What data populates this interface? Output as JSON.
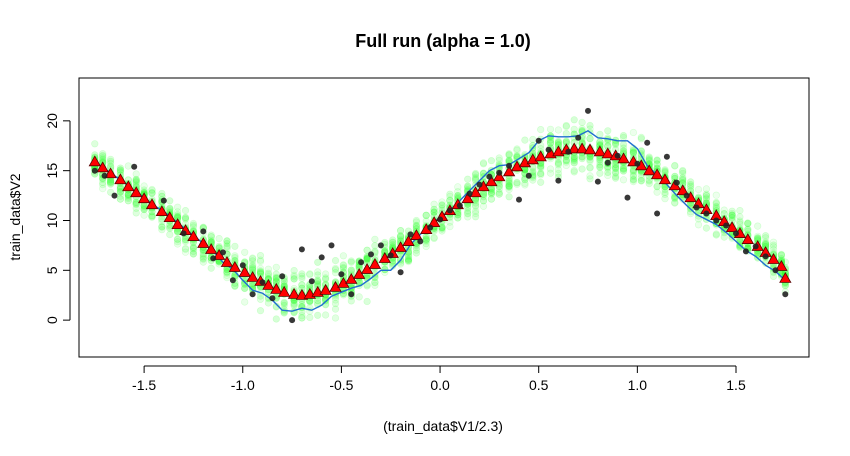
{
  "chart_data": {
    "type": "scatter",
    "title": "Full run (alpha = 1.0)",
    "xlabel": "(train_data$V1/2.3)",
    "ylabel": "train_data$V2",
    "xlim": [
      -1.83,
      1.87
    ],
    "ylim": [
      -3.7,
      24.3
    ],
    "x_ticks": [
      -1.5,
      -1.0,
      -0.5,
      0.0,
      0.5,
      1.0,
      1.5
    ],
    "x_tick_labels": [
      "-1.5",
      "-1.0",
      "-0.5",
      "0.0",
      "0.5",
      "1.0",
      "1.5"
    ],
    "y_ticks": [
      0,
      5,
      10,
      15,
      20
    ],
    "y_tick_labels": [
      "0",
      "5",
      "10",
      "15",
      "20"
    ],
    "grid": false,
    "legend": "none",
    "colors": {
      "green_band": "#33ff33",
      "blue_line": "#1f6fd0",
      "triangles": "#ff0000",
      "triangle_outline": "#5a0000",
      "points": "#222222"
    },
    "series": [
      {
        "type": "line",
        "x": [
          -1.75,
          -1.7,
          -1.65,
          -1.6,
          -1.55,
          -1.5,
          -1.45,
          -1.4,
          -1.35,
          -1.3,
          -1.25,
          -1.2,
          -1.15,
          -1.1,
          -1.05,
          -1.0,
          -0.95,
          -0.9,
          -0.85,
          -0.8,
          -0.75,
          -0.7,
          -0.65,
          -0.6,
          -0.55,
          -0.5,
          -0.45,
          -0.4,
          -0.35,
          -0.3,
          -0.25,
          -0.2,
          -0.15,
          -0.1,
          -0.05,
          0.0,
          0.05,
          0.1,
          0.15,
          0.2,
          0.25,
          0.3,
          0.35,
          0.4,
          0.45,
          0.5,
          0.55,
          0.6,
          0.65,
          0.7,
          0.75,
          0.8,
          0.85,
          0.9,
          0.95,
          1.0,
          1.05,
          1.1,
          1.15,
          1.2,
          1.25,
          1.3,
          1.35,
          1.4,
          1.45,
          1.5,
          1.55,
          1.6,
          1.65,
          1.7,
          1.75
        ],
        "y": [
          15.9,
          15.2,
          14.5,
          13.8,
          13.0,
          12.3,
          11.5,
          10.9,
          10.1,
          9.3,
          8.5,
          7.7,
          6.9,
          5.8,
          5.1,
          4.0,
          3.0,
          2.7,
          2.0,
          1.0,
          0.9,
          1.2,
          1.0,
          1.5,
          2.4,
          2.8,
          3.2,
          3.5,
          4.2,
          5.0,
          5.0,
          6.0,
          7.6,
          8.6,
          9.6,
          10.3,
          11.0,
          12.0,
          13.0,
          14.0,
          15.0,
          15.5,
          15.6,
          16.2,
          16.8,
          18.0,
          18.5,
          18.4,
          18.4,
          18.5,
          19.0,
          18.3,
          18.2,
          18.0,
          18.0,
          17.2,
          15.5,
          14.6,
          13.6,
          12.5,
          11.5,
          10.6,
          10.1,
          9.6,
          8.8,
          7.9,
          7.0,
          6.4,
          5.5,
          4.9,
          4.0
        ]
      },
      {
        "type": "triangles",
        "x": [
          -1.75,
          -1.71,
          -1.67,
          -1.62,
          -1.58,
          -1.54,
          -1.5,
          -1.46,
          -1.41,
          -1.37,
          -1.33,
          -1.29,
          -1.25,
          -1.2,
          -1.16,
          -1.12,
          -1.08,
          -1.04,
          -0.99,
          -0.95,
          -0.91,
          -0.87,
          -0.83,
          -0.79,
          -0.74,
          -0.7,
          -0.66,
          -0.62,
          -0.58,
          -0.53,
          -0.49,
          -0.45,
          -0.41,
          -0.37,
          -0.33,
          -0.28,
          -0.24,
          -0.2,
          -0.16,
          -0.12,
          -0.07,
          -0.03,
          0.01,
          0.05,
          0.09,
          0.14,
          0.18,
          0.22,
          0.26,
          0.3,
          0.35,
          0.39,
          0.43,
          0.47,
          0.51,
          0.56,
          0.6,
          0.64,
          0.68,
          0.72,
          0.76,
          0.81,
          0.85,
          0.89,
          0.93,
          0.98,
          1.02,
          1.06,
          1.1,
          1.14,
          1.19,
          1.23,
          1.27,
          1.31,
          1.35,
          1.4,
          1.44,
          1.48,
          1.52,
          1.56,
          1.61,
          1.65,
          1.69,
          1.73,
          1.75
        ],
        "y": [
          15.9,
          15.3,
          14.7,
          14.1,
          13.4,
          12.8,
          12.2,
          11.6,
          10.9,
          10.3,
          9.6,
          9.0,
          8.4,
          7.7,
          7.1,
          6.5,
          5.8,
          5.3,
          4.8,
          4.3,
          3.9,
          3.5,
          3.1,
          2.8,
          2.6,
          2.5,
          2.6,
          2.8,
          3.0,
          3.3,
          3.7,
          4.1,
          4.6,
          5.1,
          5.6,
          6.2,
          6.7,
          7.3,
          7.9,
          8.5,
          9.1,
          9.8,
          10.4,
          11.0,
          11.6,
          12.2,
          12.8,
          13.4,
          13.9,
          14.4,
          14.9,
          15.4,
          15.8,
          16.1,
          16.4,
          16.7,
          16.9,
          17.1,
          17.2,
          17.2,
          17.1,
          16.9,
          16.7,
          16.5,
          16.2,
          15.9,
          15.5,
          15.0,
          14.6,
          14.1,
          13.5,
          13.0,
          12.3,
          11.7,
          11.1,
          10.5,
          9.9,
          9.3,
          8.7,
          8.1,
          7.4,
          6.8,
          6.1,
          5.4,
          4.2
        ]
      },
      {
        "type": "points",
        "x": [
          -1.75,
          -1.7,
          -1.65,
          -1.55,
          -1.4,
          -1.3,
          -1.2,
          -1.15,
          -1.1,
          -1.05,
          -1.0,
          -0.95,
          -0.9,
          -0.85,
          -0.8,
          -0.75,
          -0.7,
          -0.65,
          -0.6,
          -0.55,
          -0.5,
          -0.45,
          -0.4,
          -0.35,
          -0.3,
          -0.25,
          -0.2,
          -0.15,
          -0.1,
          -0.05,
          0.0,
          0.05,
          0.1,
          0.15,
          0.2,
          0.25,
          0.3,
          0.35,
          0.4,
          0.45,
          0.5,
          0.55,
          0.6,
          0.65,
          0.7,
          0.75,
          0.8,
          0.85,
          0.9,
          0.95,
          1.0,
          1.05,
          1.1,
          1.15,
          1.2,
          1.25,
          1.3,
          1.35,
          1.4,
          1.45,
          1.5,
          1.55,
          1.6,
          1.65,
          1.7,
          1.75
        ],
        "y": [
          15.0,
          14.5,
          12.5,
          15.4,
          12.0,
          8.7,
          8.9,
          6.2,
          6.8,
          4.0,
          5.5,
          2.6,
          3.8,
          2.2,
          4.4,
          0.0,
          7.1,
          3.9,
          6.3,
          7.5,
          4.6,
          2.6,
          5.8,
          6.6,
          7.5,
          6.5,
          4.8,
          8.6,
          7.9,
          9.3,
          10.1,
          11.0,
          11.5,
          12.7,
          13.6,
          14.4,
          14.8,
          15.5,
          12.1,
          14.5,
          18.0,
          17.1,
          14.0,
          16.9,
          18.3,
          21.0,
          13.9,
          15.8,
          16.5,
          12.3,
          15.7,
          17.8,
          10.7,
          16.4,
          13.8,
          12.5,
          11.3,
          10.7,
          10.0,
          9.5,
          8.7,
          6.9,
          7.4,
          6.4,
          5.0,
          2.6
        ]
      }
    ]
  }
}
